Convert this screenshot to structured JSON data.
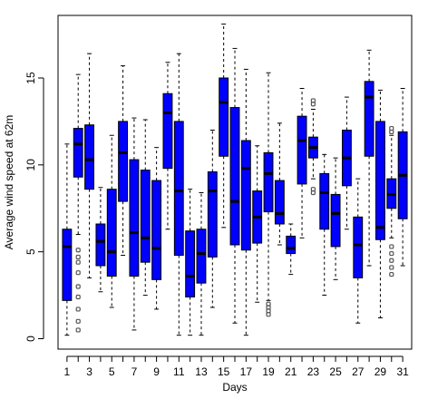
{
  "chart_data": {
    "type": "boxplot",
    "title": "",
    "xlabel": "Days",
    "ylabel": "Average wind speed at 62m",
    "ylim": [
      -0.6,
      18.6
    ],
    "yticks": [
      0,
      5,
      10,
      15
    ],
    "xticks_labeled": [
      1,
      3,
      5,
      7,
      9,
      11,
      13,
      15,
      17,
      19,
      21,
      23,
      25,
      27,
      29,
      31
    ],
    "box_color": "#0000ff",
    "outlier_color": "#555555",
    "grid": false,
    "legend": "none",
    "categories": [
      1,
      2,
      3,
      4,
      5,
      6,
      7,
      8,
      9,
      10,
      11,
      12,
      13,
      14,
      15,
      16,
      17,
      18,
      19,
      20,
      21,
      22,
      23,
      24,
      25,
      26,
      27,
      28,
      29,
      30,
      31
    ],
    "boxes": [
      {
        "min": 0.2,
        "q1": 2.2,
        "median": 5.3,
        "q3": 6.3,
        "max": 11.2,
        "outliers": []
      },
      {
        "min": 6.0,
        "q1": 9.3,
        "median": 11.2,
        "q3": 12.1,
        "max": 15.2,
        "outliers": [
          5.1,
          4.7,
          4.4,
          3.8,
          3.0,
          2.4,
          1.7,
          1.0,
          0.5
        ]
      },
      {
        "min": 3.5,
        "q1": 8.6,
        "median": 10.3,
        "q3": 12.3,
        "max": 16.4,
        "outliers": []
      },
      {
        "min": 2.7,
        "q1": 4.2,
        "median": 5.6,
        "q3": 6.6,
        "max": 8.7,
        "outliers": []
      },
      {
        "min": 1.8,
        "q1": 3.6,
        "median": 5.0,
        "q3": 8.6,
        "max": 11.7,
        "outliers": []
      },
      {
        "min": 4.8,
        "q1": 7.9,
        "median": 10.7,
        "q3": 12.5,
        "max": 15.7,
        "outliers": []
      },
      {
        "min": 0.5,
        "q1": 3.6,
        "median": 6.1,
        "q3": 10.3,
        "max": 12.7,
        "outliers": []
      },
      {
        "min": 2.5,
        "q1": 4.4,
        "median": 5.8,
        "q3": 9.7,
        "max": 12.6,
        "outliers": []
      },
      {
        "min": 1.7,
        "q1": 3.4,
        "median": 5.2,
        "q3": 9.1,
        "max": 11.0,
        "outliers": []
      },
      {
        "min": 6.3,
        "q1": 9.8,
        "median": 13.0,
        "q3": 14.1,
        "max": 15.9,
        "outliers": []
      },
      {
        "min": 0.2,
        "q1": 4.8,
        "median": 8.5,
        "q3": 12.5,
        "max": 16.4,
        "outliers": []
      },
      {
        "min": 0.2,
        "q1": 2.4,
        "median": 3.6,
        "q3": 6.2,
        "max": 8.6,
        "outliers": []
      },
      {
        "min": 0.2,
        "q1": 3.2,
        "median": 4.9,
        "q3": 6.3,
        "max": 8.4,
        "outliers": []
      },
      {
        "min": 1.8,
        "q1": 4.7,
        "median": 8.5,
        "q3": 9.6,
        "max": 12.0,
        "outliers": []
      },
      {
        "min": 6.4,
        "q1": 10.5,
        "median": 13.6,
        "q3": 15.0,
        "max": 18.1,
        "outliers": []
      },
      {
        "min": 0.9,
        "q1": 5.4,
        "median": 7.9,
        "q3": 13.3,
        "max": 16.7,
        "outliers": []
      },
      {
        "min": 0.2,
        "q1": 5.1,
        "median": 9.8,
        "q3": 11.4,
        "max": 15.5,
        "outliers": []
      },
      {
        "min": 2.1,
        "q1": 5.5,
        "median": 7.0,
        "q3": 8.5,
        "max": 11.1,
        "outliers": []
      },
      {
        "min": 2.2,
        "q1": 7.3,
        "median": 9.5,
        "q3": 10.7,
        "max": 15.3,
        "outliers": [
          2.0,
          1.8,
          1.6,
          1.4
        ]
      },
      {
        "min": 5.4,
        "q1": 6.6,
        "median": 7.2,
        "q3": 9.1,
        "max": 12.4,
        "outliers": []
      },
      {
        "min": 3.7,
        "q1": 4.9,
        "median": 5.2,
        "q3": 5.9,
        "max": 6.6,
        "outliers": []
      },
      {
        "min": 5.8,
        "q1": 8.9,
        "median": 11.4,
        "q3": 12.8,
        "max": 14.4,
        "outliers": []
      },
      {
        "min": 9.2,
        "q1": 10.4,
        "median": 11.0,
        "q3": 11.6,
        "max": 13.2,
        "outliers": [
          13.7,
          13.5,
          8.6,
          8.4
        ]
      },
      {
        "min": 2.5,
        "q1": 6.3,
        "median": 8.4,
        "q3": 9.5,
        "max": 10.6,
        "outliers": []
      },
      {
        "min": 3.4,
        "q1": 5.3,
        "median": 7.2,
        "q3": 8.3,
        "max": 10.4,
        "outliers": []
      },
      {
        "min": 6.3,
        "q1": 8.8,
        "median": 10.4,
        "q3": 12.0,
        "max": 13.9,
        "outliers": []
      },
      {
        "min": 0.9,
        "q1": 3.5,
        "median": 5.4,
        "q3": 7.0,
        "max": 9.2,
        "outliers": []
      },
      {
        "min": 4.2,
        "q1": 10.5,
        "median": 13.9,
        "q3": 14.8,
        "max": 16.6,
        "outliers": []
      },
      {
        "min": 1.2,
        "q1": 5.7,
        "median": 6.4,
        "q3": 12.5,
        "max": 14.3,
        "outliers": []
      },
      {
        "min": 5.8,
        "q1": 7.5,
        "median": 8.3,
        "q3": 9.2,
        "max": 11.7,
        "outliers": [
          12.1,
          11.9,
          5.3,
          4.9,
          4.5,
          4.1,
          3.7
        ]
      },
      {
        "min": 4.2,
        "q1": 6.9,
        "median": 9.4,
        "q3": 11.9,
        "max": 14.4,
        "outliers": []
      }
    ]
  }
}
